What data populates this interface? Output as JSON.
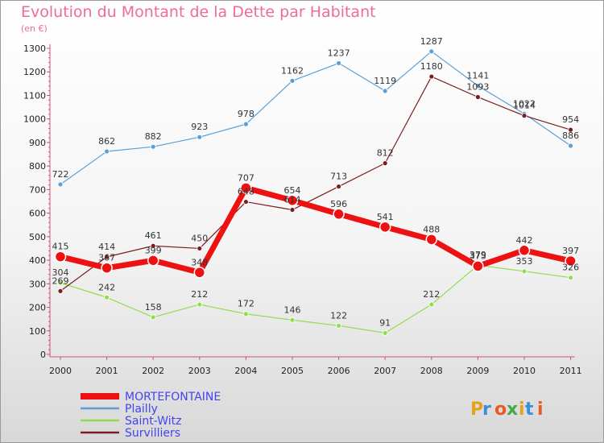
{
  "chart_data": {
    "type": "line",
    "title": "Evolution du Montant de la Dette par Habitant",
    "subtitle": "(en €)",
    "x": [
      "2000",
      "2001",
      "2002",
      "2003",
      "2004",
      "2005",
      "2006",
      "2007",
      "2008",
      "2009",
      "2010",
      "2011"
    ],
    "ylim": [
      0,
      1300
    ],
    "yticks": [
      0,
      100,
      200,
      300,
      400,
      500,
      600,
      700,
      800,
      900,
      1000,
      1100,
      1200,
      1300
    ],
    "grid": false,
    "legend_placement": "bottom-left",
    "series": [
      {
        "name": "MORTEFONTAINE",
        "color": "#ee1111",
        "values": [
          415,
          367,
          399,
          348,
          707,
          654,
          596,
          541,
          488,
          375,
          442,
          397
        ]
      },
      {
        "name": "Plailly",
        "color": "#5a9fd8",
        "values": [
          722,
          862,
          882,
          923,
          978,
          1162,
          1237,
          1119,
          1287,
          1141,
          1022,
          886
        ]
      },
      {
        "name": "Saint-Witz",
        "color": "#93dc4e",
        "values": [
          304,
          242,
          158,
          212,
          172,
          146,
          122,
          91,
          212,
          379,
          353,
          326
        ]
      },
      {
        "name": "Survilliers",
        "color": "#7a1e1e",
        "values": [
          269,
          414,
          461,
          450,
          648,
          614,
          713,
          812,
          1180,
          1093,
          1014,
          954
        ]
      }
    ]
  },
  "legend_text_color": "#4444ee",
  "logo": {
    "text": "Proxiti",
    "colors": [
      "#e8a020",
      "#3b8ed8",
      "#e85a20",
      "#4aa84a",
      "#e8a020",
      "#3b8ed8",
      "#e85a20"
    ]
  }
}
